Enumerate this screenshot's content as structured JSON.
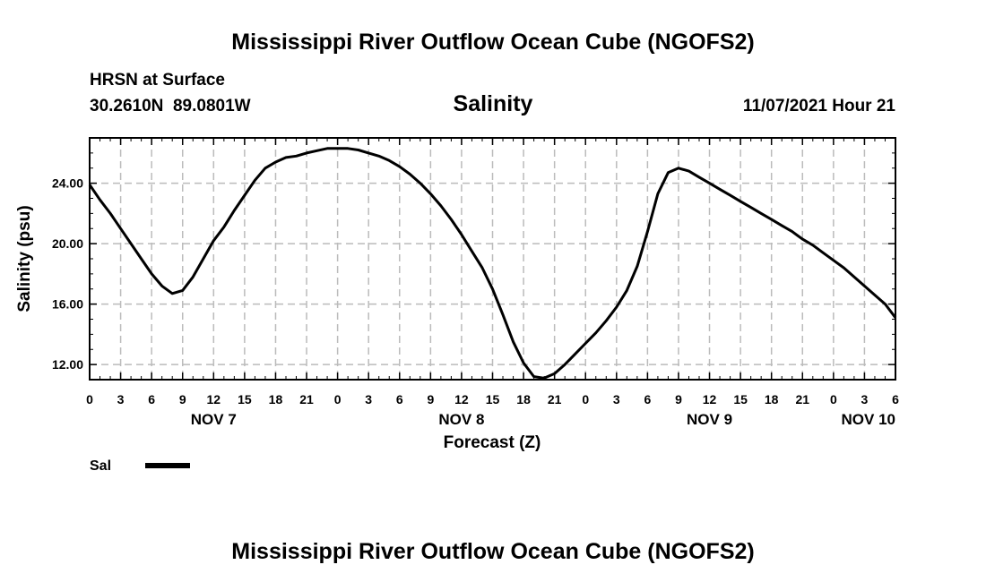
{
  "header": {
    "title": "Mississippi River Outflow Ocean Cube (NGOFS2)",
    "station": "HRSN at Surface",
    "coords": "30.2610N  89.0801W",
    "datetime": "11/07/2021 Hour 21"
  },
  "footer": {
    "title": "Mississippi River Outflow Ocean Cube (NGOFS2)"
  },
  "chart_data": {
    "type": "line",
    "title": "Salinity",
    "xlabel": "Forecast (Z)",
    "ylabel": "Salinity (psu)",
    "xlim": [
      0,
      78
    ],
    "ylim": [
      11,
      27
    ],
    "x_tick_labels": [
      "0",
      "3",
      "6",
      "9",
      "12",
      "15",
      "18",
      "21",
      "0",
      "3",
      "6",
      "9",
      "12",
      "15",
      "18",
      "21",
      "0",
      "3",
      "6",
      "9",
      "12",
      "15",
      "18",
      "21",
      "0",
      "3",
      "6"
    ],
    "y_ticks": [
      12,
      16,
      20,
      24
    ],
    "y_tick_labels": [
      "12.00",
      "16.00",
      "20.00",
      "24.00"
    ],
    "date_labels": [
      {
        "label": "NOV 7",
        "x": 12
      },
      {
        "label": "NOV 8",
        "x": 36
      },
      {
        "label": "NOV 9",
        "x": 60
      },
      {
        "label": "NOV 10",
        "x": 78
      }
    ],
    "grid": true,
    "legend_position": "bottom-left",
    "series": [
      {
        "name": "Sal",
        "color": "#000000",
        "x": [
          0,
          1,
          2,
          3,
          4,
          5,
          6,
          7,
          8,
          9,
          10,
          11,
          12,
          13,
          14,
          15,
          16,
          17,
          18,
          19,
          20,
          21,
          22,
          23,
          24,
          25,
          26,
          27,
          28,
          29,
          30,
          31,
          32,
          33,
          34,
          35,
          36,
          37,
          38,
          39,
          40,
          41,
          42,
          43,
          44,
          45,
          46,
          47,
          48,
          49,
          50,
          51,
          52,
          53,
          54,
          55,
          56,
          57,
          58,
          59,
          60,
          61,
          62,
          63,
          64,
          65,
          66,
          67,
          68,
          69,
          70,
          71,
          72,
          73,
          74,
          75,
          76,
          77,
          78
        ],
        "values": [
          23.9,
          22.9,
          22.0,
          21.0,
          20.0,
          19.0,
          18.0,
          17.2,
          16.7,
          16.9,
          17.8,
          19.0,
          20.2,
          21.1,
          22.2,
          23.2,
          24.2,
          25.0,
          25.4,
          25.7,
          25.8,
          26.0,
          26.15,
          26.3,
          26.3,
          26.3,
          26.2,
          26.0,
          25.8,
          25.5,
          25.1,
          24.6,
          24.0,
          23.3,
          22.5,
          21.6,
          20.6,
          19.5,
          18.4,
          17.0,
          15.3,
          13.5,
          12.1,
          11.2,
          11.1,
          11.4,
          12.0,
          12.7,
          13.4,
          14.1,
          14.9,
          15.8,
          16.9,
          18.5,
          20.8,
          23.3,
          24.7,
          25.0,
          24.8,
          24.4,
          24.0,
          23.6,
          23.2,
          22.8,
          22.4,
          22.0,
          21.6,
          21.2,
          20.8,
          20.3,
          19.9,
          19.4,
          18.9,
          18.4,
          17.8,
          17.2,
          16.6,
          16.0,
          15.1
        ]
      }
    ]
  }
}
